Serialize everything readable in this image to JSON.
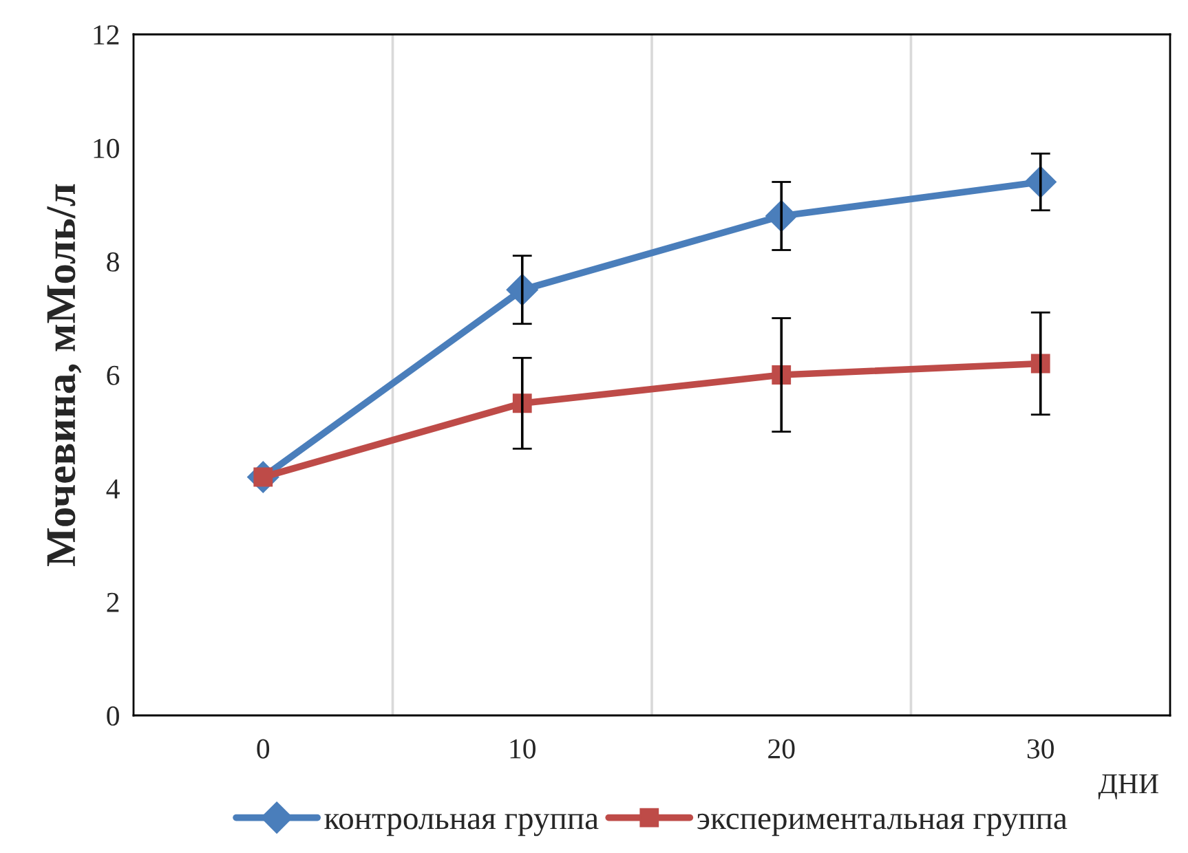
{
  "chart_data": {
    "type": "line",
    "ylabel": "Мочевина, мМоль/л",
    "xlabel": "ДНИ",
    "categories": [
      "0",
      "10",
      "20",
      "30"
    ],
    "series": [
      {
        "name": "контрольная группа",
        "color": "#4a7ebb",
        "values": [
          4.2,
          7.5,
          8.8,
          9.4
        ],
        "errors": [
          null,
          0.6,
          0.6,
          0.5
        ],
        "marker": "diamond"
      },
      {
        "name": "экспериментальная группа",
        "color": "#be4b48",
        "values": [
          4.2,
          5.5,
          6.0,
          6.2
        ],
        "errors": [
          null,
          0.8,
          1.0,
          0.9
        ],
        "marker": "square"
      }
    ],
    "ylim": [
      0,
      12
    ],
    "yticks": [
      0,
      2,
      4,
      6,
      8,
      10,
      12
    ],
    "grid": "x",
    "legend": "bottom",
    "line_style": "solid"
  }
}
